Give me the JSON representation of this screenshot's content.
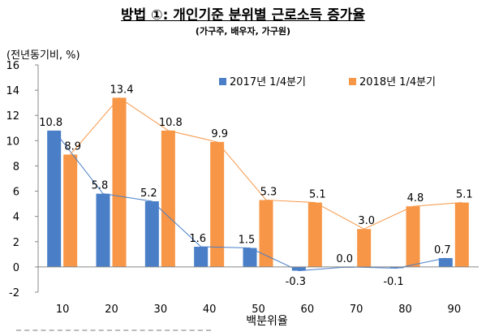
{
  "title": "방법 ①: 개인기준 분위별 근로소득 증가율",
  "subtitle": "(가구주, 배우자, 가구원)",
  "chart_data": {
    "type": "bar",
    "ylabel": "(전년동기비, %)",
    "xlabel": "백분위율",
    "categories": [
      "10",
      "20",
      "30",
      "40",
      "50",
      "60",
      "70",
      "80",
      "90"
    ],
    "ylim": [
      -2,
      16
    ],
    "yticks": [
      -2,
      0,
      2,
      4,
      6,
      8,
      10,
      12,
      14,
      16
    ],
    "legend_position": "top-right",
    "grid": false,
    "series": [
      {
        "name": "2017년 1/4분기",
        "color": "#4a7fc8",
        "values": [
          10.8,
          5.8,
          5.2,
          1.6,
          1.5,
          -0.3,
          0.0,
          -0.1,
          0.7
        ],
        "labels": [
          "10.8",
          "5.8",
          "5.2",
          "1.6",
          "1.5",
          "-0.3",
          "0.0",
          "-0.1",
          "0.7"
        ]
      },
      {
        "name": "2018년 1/4분기",
        "color": "#f79646",
        "values": [
          8.9,
          13.4,
          10.8,
          9.9,
          5.3,
          5.1,
          3.0,
          4.8,
          5.1
        ],
        "labels": [
          "8.9",
          "13.4",
          "10.8",
          "9.9",
          "5.3",
          "5.1",
          "3.0",
          "4.8",
          "5.1"
        ]
      }
    ]
  }
}
